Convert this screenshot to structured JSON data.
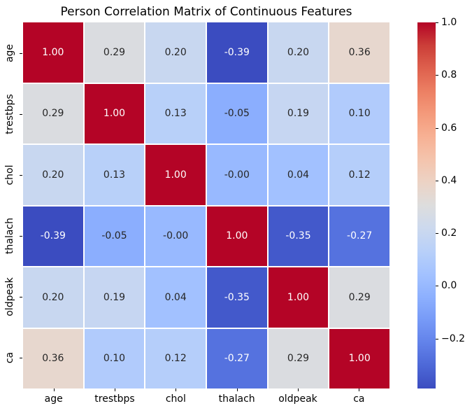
{
  "title": "Person Correlation Matrix of Continuous Features",
  "chart_data": {
    "type": "heatmap",
    "title": "Person Correlation Matrix of Continuous Features",
    "x_labels": [
      "age",
      "trestbps",
      "chol",
      "thalach",
      "oldpeak",
      "ca"
    ],
    "y_labels": [
      "age",
      "trestbps",
      "chol",
      "thalach",
      "oldpeak",
      "ca"
    ],
    "values": [
      [
        1.0,
        0.29,
        0.2,
        -0.39,
        0.2,
        0.36
      ],
      [
        0.29,
        1.0,
        0.13,
        -0.05,
        0.19,
        0.1
      ],
      [
        0.2,
        0.13,
        1.0,
        -0.0,
        0.04,
        0.12
      ],
      [
        -0.39,
        -0.05,
        -0.0,
        1.0,
        -0.35,
        -0.27
      ],
      [
        0.2,
        0.19,
        0.04,
        -0.35,
        1.0,
        0.29
      ],
      [
        0.36,
        0.1,
        0.12,
        -0.27,
        0.29,
        1.0
      ]
    ],
    "value_labels": [
      [
        "1.00",
        "0.29",
        "0.20",
        "-0.39",
        "0.20",
        "0.36"
      ],
      [
        "0.29",
        "1.00",
        "0.13",
        "-0.05",
        "0.19",
        "0.10"
      ],
      [
        "0.20",
        "0.13",
        "1.00",
        "-0.00",
        "0.04",
        "0.12"
      ],
      [
        "-0.39",
        "-0.05",
        "-0.00",
        "1.00",
        "-0.35",
        "-0.27"
      ],
      [
        "0.20",
        "0.19",
        "0.04",
        "-0.35",
        "1.00",
        "0.29"
      ],
      [
        "0.36",
        "0.10",
        "0.12",
        "-0.27",
        "0.29",
        "1.00"
      ]
    ],
    "cell_colors": [
      [
        "#B40426",
        "#DADCE0",
        "#C8D7F0",
        "#3B4CC0",
        "#C8D7F0",
        "#E7D7CE"
      ],
      [
        "#DADCE0",
        "#B40426",
        "#B8D0F9",
        "#8BAEFE",
        "#C6D6F2",
        "#B1CBFC"
      ],
      [
        "#C8D7F0",
        "#B8D0F9",
        "#B40426",
        "#98B9FF",
        "#A2C1FF",
        "#B5CEFA"
      ],
      [
        "#3B4CC0",
        "#8BAEFE",
        "#98B9FF",
        "#B40426",
        "#4359CB",
        "#5572DF"
      ],
      [
        "#C8D7F0",
        "#C6D6F2",
        "#A2C1FF",
        "#4359CB",
        "#B40426",
        "#DADCE0"
      ],
      [
        "#E7D7CE",
        "#B1CBFC",
        "#B5CEFA",
        "#5572DF",
        "#DADCE0",
        "#B40426"
      ]
    ],
    "text_colors": [
      [
        "#ffffff",
        "#262626",
        "#262626",
        "#ffffff",
        "#262626",
        "#262626"
      ],
      [
        "#262626",
        "#ffffff",
        "#262626",
        "#262626",
        "#262626",
        "#262626"
      ],
      [
        "#262626",
        "#262626",
        "#ffffff",
        "#262626",
        "#262626",
        "#262626"
      ],
      [
        "#ffffff",
        "#262626",
        "#262626",
        "#ffffff",
        "#ffffff",
        "#ffffff"
      ],
      [
        "#262626",
        "#262626",
        "#262626",
        "#ffffff",
        "#ffffff",
        "#262626"
      ],
      [
        "#262626",
        "#262626",
        "#262626",
        "#ffffff",
        "#262626",
        "#ffffff"
      ]
    ],
    "colormap": "coolwarm",
    "vmin": -0.39,
    "vmax": 1.0,
    "grid_line_color": "#ffffff",
    "legend_position": "right-colorbar",
    "colorbar": {
      "tick_labels": [
        "1.0",
        "0.8",
        "0.6",
        "0.4",
        "0.2",
        "0.0",
        "−0.2"
      ],
      "tick_values": [
        1.0,
        0.8,
        0.6,
        0.4,
        0.2,
        0.0,
        -0.2
      ],
      "gradient_stops": [
        {
          "pos": 0.0,
          "color": "#3B4CC0"
        },
        {
          "pos": 0.0625,
          "color": "#4D68D7"
        },
        {
          "pos": 0.125,
          "color": "#6282EA"
        },
        {
          "pos": 0.1875,
          "color": "#779AF7"
        },
        {
          "pos": 0.25,
          "color": "#8DB0FE"
        },
        {
          "pos": 0.3125,
          "color": "#A3C2FF"
        },
        {
          "pos": 0.375,
          "color": "#B8D0F9"
        },
        {
          "pos": 0.4375,
          "color": "#CCD9EE"
        },
        {
          "pos": 0.5,
          "color": "#DDDDDD"
        },
        {
          "pos": 0.5625,
          "color": "#ECD3C5"
        },
        {
          "pos": 0.625,
          "color": "#F4C4AD"
        },
        {
          "pos": 0.6875,
          "color": "#F7B194"
        },
        {
          "pos": 0.75,
          "color": "#F49A7B"
        },
        {
          "pos": 0.8125,
          "color": "#EC7F63"
        },
        {
          "pos": 0.875,
          "color": "#DE604D"
        },
        {
          "pos": 0.9375,
          "color": "#CB3E38"
        },
        {
          "pos": 1.0,
          "color": "#B40426"
        }
      ]
    }
  }
}
